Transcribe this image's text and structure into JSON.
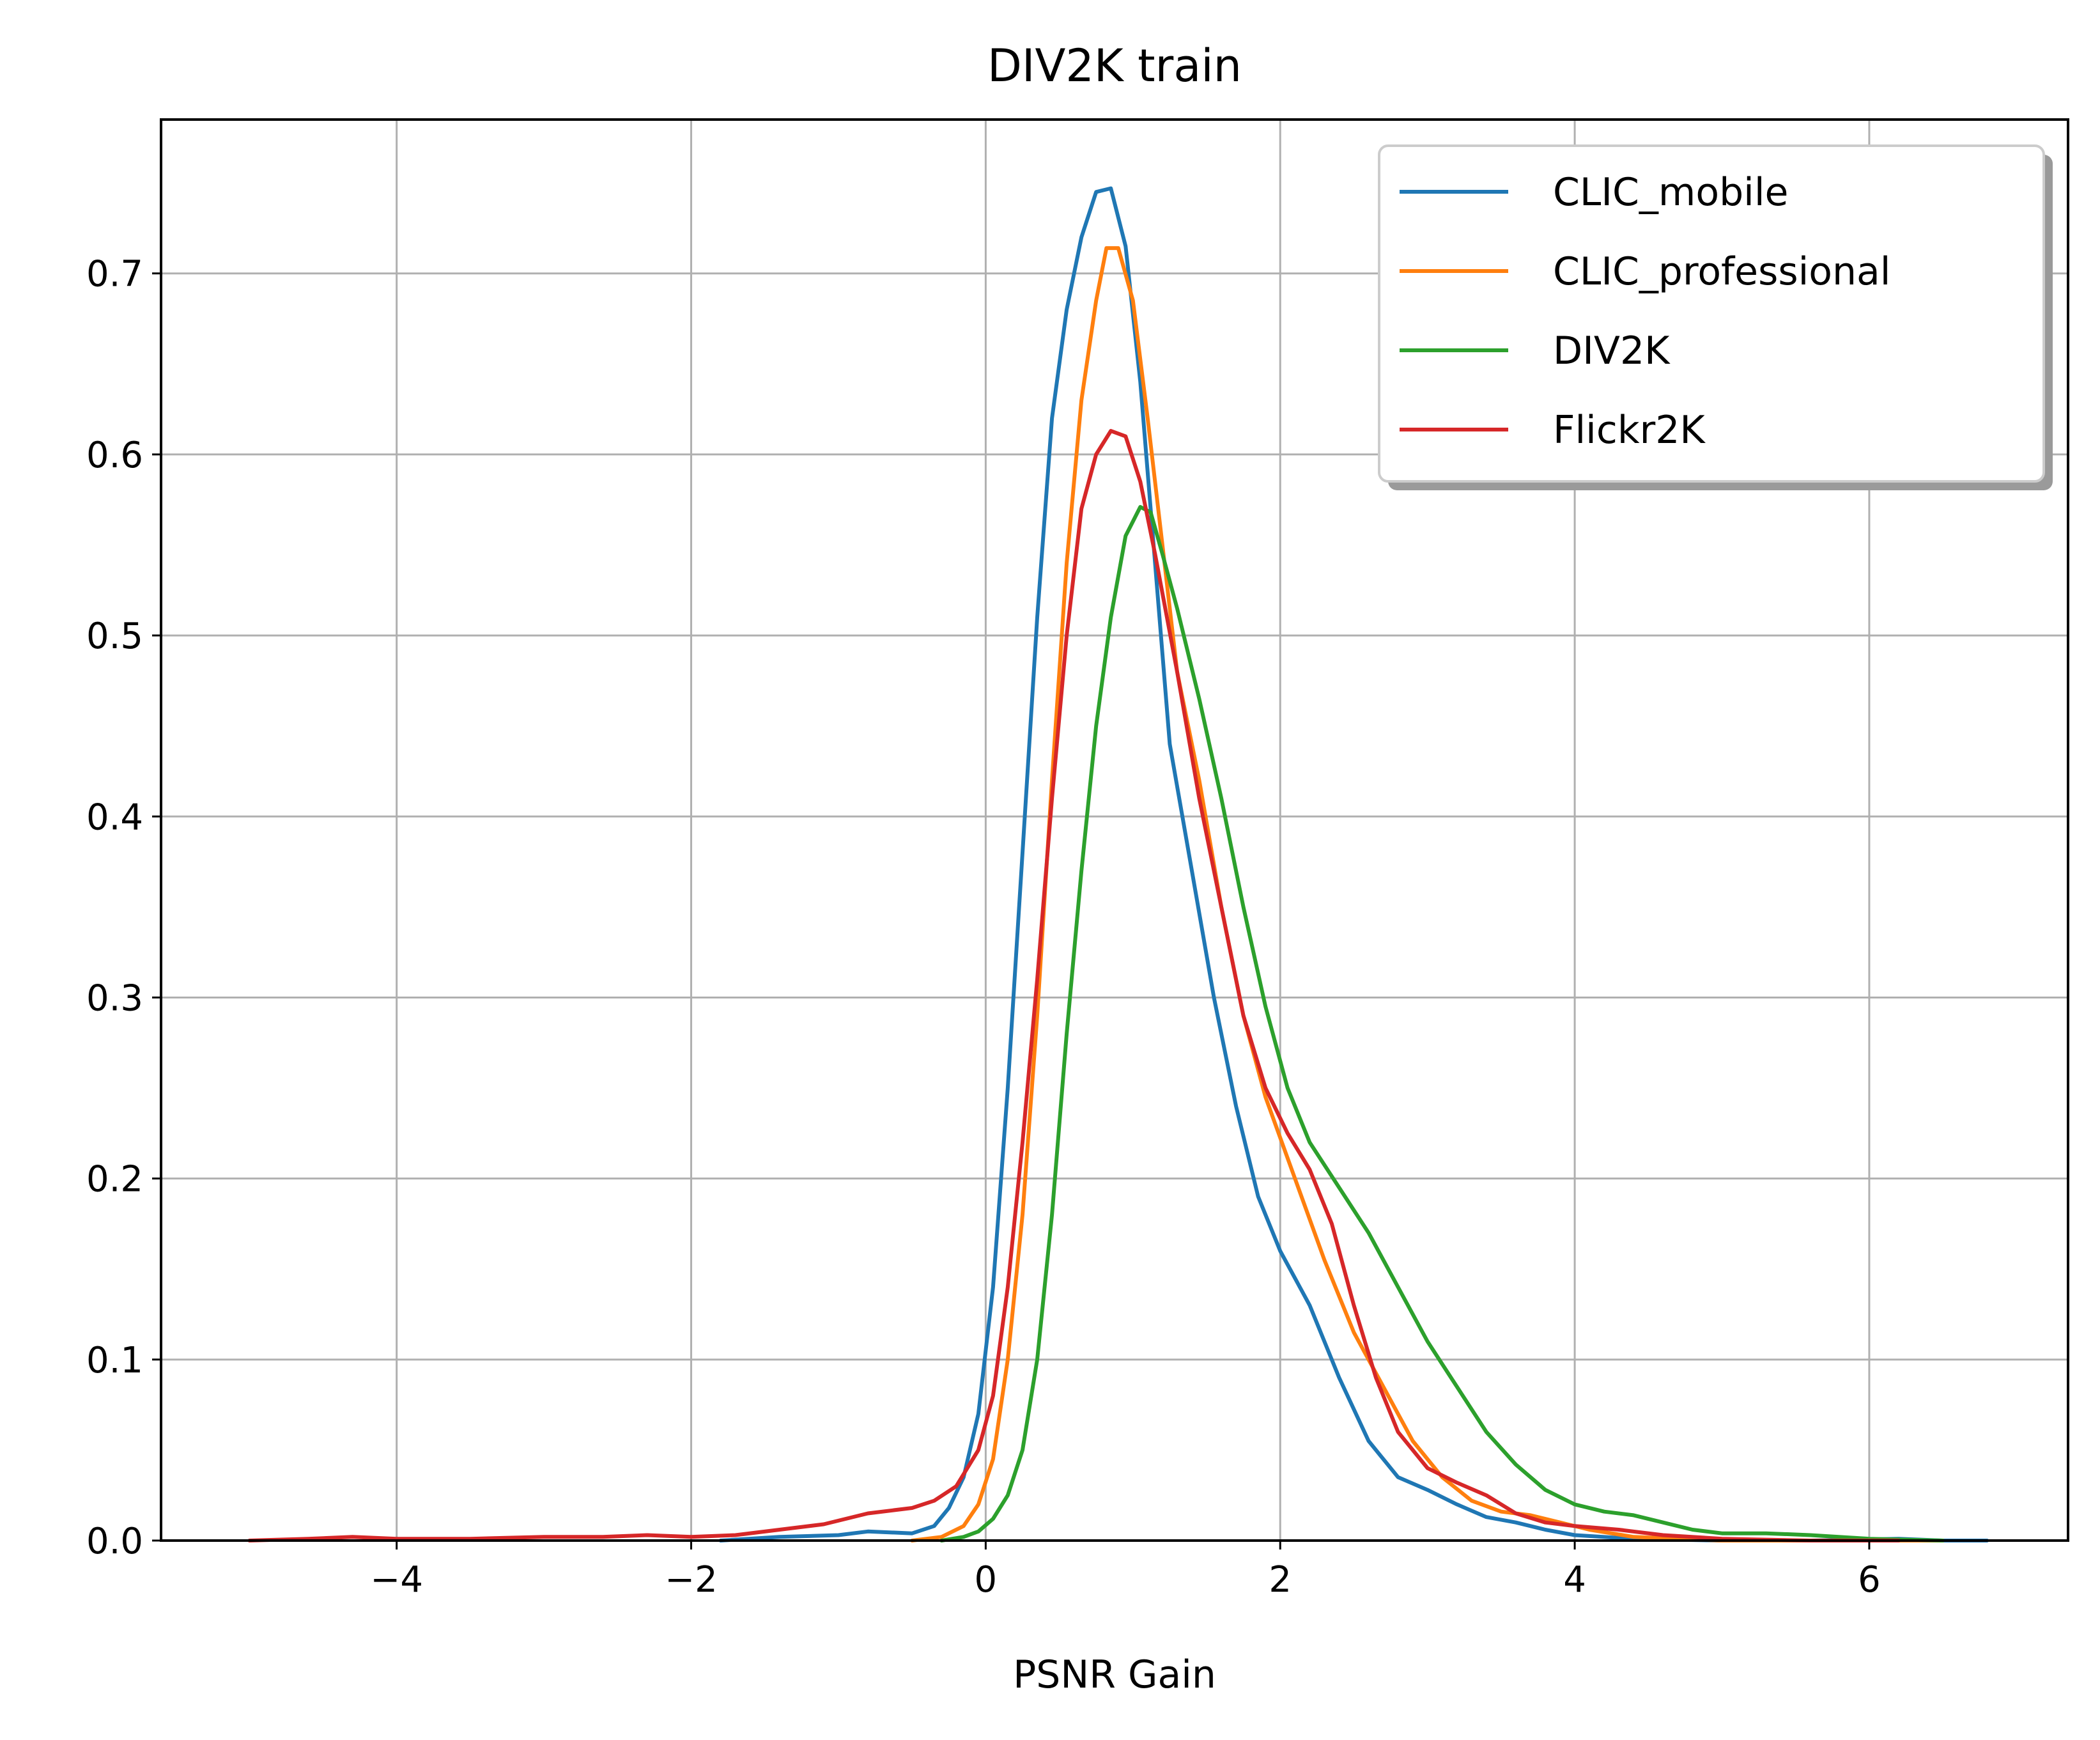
{
  "chart_data": {
    "type": "line",
    "title": "DIV2K train",
    "xlabel": "PSNR Gain",
    "ylabel": "",
    "xlim": [
      -5.6,
      7.35
    ],
    "ylim": [
      0,
      0.785
    ],
    "xticks": [
      -4,
      -2,
      0,
      2,
      4,
      6
    ],
    "xtick_labels": [
      "−4",
      "−2",
      "0",
      "2",
      "4",
      "6"
    ],
    "yticks": [
      0.0,
      0.1,
      0.2,
      0.3,
      0.4,
      0.5,
      0.6,
      0.7
    ],
    "ytick_labels": [
      "0.0",
      "0.1",
      "0.2",
      "0.3",
      "0.4",
      "0.5",
      "0.6",
      "0.7"
    ],
    "grid": true,
    "legend_position": "top-right",
    "series": [
      {
        "name": "CLIC_mobile",
        "color": "#1f77b4",
        "points": [
          [
            -1.8,
            0.0
          ],
          [
            -1.4,
            0.002
          ],
          [
            -1.0,
            0.003
          ],
          [
            -0.8,
            0.005
          ],
          [
            -0.5,
            0.004
          ],
          [
            -0.35,
            0.008
          ],
          [
            -0.25,
            0.018
          ],
          [
            -0.15,
            0.035
          ],
          [
            -0.05,
            0.07
          ],
          [
            0.05,
            0.14
          ],
          [
            0.15,
            0.25
          ],
          [
            0.25,
            0.38
          ],
          [
            0.35,
            0.51
          ],
          [
            0.45,
            0.62
          ],
          [
            0.55,
            0.68
          ],
          [
            0.65,
            0.72
          ],
          [
            0.75,
            0.745
          ],
          [
            0.85,
            0.747
          ],
          [
            0.95,
            0.715
          ],
          [
            1.05,
            0.64
          ],
          [
            1.15,
            0.54
          ],
          [
            1.25,
            0.44
          ],
          [
            1.4,
            0.37
          ],
          [
            1.55,
            0.3
          ],
          [
            1.7,
            0.24
          ],
          [
            1.85,
            0.19
          ],
          [
            2.0,
            0.16
          ],
          [
            2.2,
            0.13
          ],
          [
            2.4,
            0.09
          ],
          [
            2.6,
            0.055
          ],
          [
            2.8,
            0.035
          ],
          [
            3.0,
            0.028
          ],
          [
            3.2,
            0.02
          ],
          [
            3.4,
            0.013
          ],
          [
            3.6,
            0.01
          ],
          [
            3.8,
            0.006
          ],
          [
            4.0,
            0.003
          ],
          [
            4.4,
            0.001
          ],
          [
            5.0,
            0.0
          ],
          [
            5.6,
            0.0
          ],
          [
            6.2,
            0.001
          ],
          [
            6.5,
            0.0
          ],
          [
            6.8,
            0.0
          ]
        ]
      },
      {
        "name": "CLIC_professional",
        "color": "#ff7f0e",
        "points": [
          [
            -0.5,
            0.0
          ],
          [
            -0.3,
            0.002
          ],
          [
            -0.15,
            0.008
          ],
          [
            -0.05,
            0.02
          ],
          [
            0.05,
            0.045
          ],
          [
            0.15,
            0.1
          ],
          [
            0.25,
            0.18
          ],
          [
            0.35,
            0.29
          ],
          [
            0.45,
            0.42
          ],
          [
            0.55,
            0.54
          ],
          [
            0.65,
            0.63
          ],
          [
            0.75,
            0.685
          ],
          [
            0.82,
            0.714
          ],
          [
            0.9,
            0.714
          ],
          [
            1.0,
            0.685
          ],
          [
            1.1,
            0.62
          ],
          [
            1.2,
            0.55
          ],
          [
            1.3,
            0.48
          ],
          [
            1.45,
            0.42
          ],
          [
            1.6,
            0.35
          ],
          [
            1.75,
            0.29
          ],
          [
            1.9,
            0.245
          ],
          [
            2.1,
            0.2
          ],
          [
            2.3,
            0.155
          ],
          [
            2.5,
            0.115
          ],
          [
            2.7,
            0.085
          ],
          [
            2.9,
            0.055
          ],
          [
            3.1,
            0.035
          ],
          [
            3.3,
            0.022
          ],
          [
            3.5,
            0.016
          ],
          [
            3.7,
            0.014
          ],
          [
            3.9,
            0.01
          ],
          [
            4.1,
            0.006
          ],
          [
            4.4,
            0.002
          ],
          [
            5.0,
            0.0
          ],
          [
            6.0,
            0.0
          ],
          [
            6.5,
            0.0
          ]
        ]
      },
      {
        "name": "DIV2K",
        "color": "#2ca02c",
        "points": [
          [
            -0.3,
            0.0
          ],
          [
            -0.15,
            0.002
          ],
          [
            -0.05,
            0.005
          ],
          [
            0.05,
            0.012
          ],
          [
            0.15,
            0.025
          ],
          [
            0.25,
            0.05
          ],
          [
            0.35,
            0.1
          ],
          [
            0.45,
            0.18
          ],
          [
            0.55,
            0.28
          ],
          [
            0.65,
            0.37
          ],
          [
            0.75,
            0.45
          ],
          [
            0.85,
            0.51
          ],
          [
            0.95,
            0.555
          ],
          [
            1.05,
            0.571
          ],
          [
            1.12,
            0.568
          ],
          [
            1.2,
            0.545
          ],
          [
            1.3,
            0.515
          ],
          [
            1.45,
            0.465
          ],
          [
            1.6,
            0.41
          ],
          [
            1.75,
            0.35
          ],
          [
            1.9,
            0.295
          ],
          [
            2.05,
            0.25
          ],
          [
            2.2,
            0.22
          ],
          [
            2.4,
            0.195
          ],
          [
            2.6,
            0.17
          ],
          [
            2.8,
            0.14
          ],
          [
            3.0,
            0.11
          ],
          [
            3.2,
            0.085
          ],
          [
            3.4,
            0.06
          ],
          [
            3.6,
            0.042
          ],
          [
            3.8,
            0.028
          ],
          [
            4.0,
            0.02
          ],
          [
            4.2,
            0.016
          ],
          [
            4.4,
            0.014
          ],
          [
            4.6,
            0.01
          ],
          [
            4.8,
            0.006
          ],
          [
            5.0,
            0.004
          ],
          [
            5.3,
            0.004
          ],
          [
            5.6,
            0.003
          ],
          [
            6.0,
            0.001
          ],
          [
            6.5,
            0.0
          ]
        ]
      },
      {
        "name": "Flickr2K",
        "color": "#d62728",
        "points": [
          [
            -5.0,
            0.0
          ],
          [
            -4.6,
            0.001
          ],
          [
            -4.3,
            0.002
          ],
          [
            -4.0,
            0.001
          ],
          [
            -3.5,
            0.001
          ],
          [
            -3.0,
            0.002
          ],
          [
            -2.6,
            0.002
          ],
          [
            -2.3,
            0.003
          ],
          [
            -2.0,
            0.002
          ],
          [
            -1.7,
            0.003
          ],
          [
            -1.4,
            0.006
          ],
          [
            -1.1,
            0.009
          ],
          [
            -0.8,
            0.015
          ],
          [
            -0.5,
            0.018
          ],
          [
            -0.35,
            0.022
          ],
          [
            -0.2,
            0.03
          ],
          [
            -0.05,
            0.05
          ],
          [
            0.05,
            0.08
          ],
          [
            0.15,
            0.14
          ],
          [
            0.25,
            0.22
          ],
          [
            0.35,
            0.31
          ],
          [
            0.45,
            0.41
          ],
          [
            0.55,
            0.5
          ],
          [
            0.65,
            0.57
          ],
          [
            0.75,
            0.6
          ],
          [
            0.85,
            0.613
          ],
          [
            0.95,
            0.61
          ],
          [
            1.05,
            0.585
          ],
          [
            1.15,
            0.545
          ],
          [
            1.3,
            0.48
          ],
          [
            1.45,
            0.41
          ],
          [
            1.6,
            0.35
          ],
          [
            1.75,
            0.29
          ],
          [
            1.9,
            0.25
          ],
          [
            2.05,
            0.225
          ],
          [
            2.2,
            0.205
          ],
          [
            2.35,
            0.175
          ],
          [
            2.5,
            0.13
          ],
          [
            2.65,
            0.09
          ],
          [
            2.8,
            0.06
          ],
          [
            3.0,
            0.04
          ],
          [
            3.2,
            0.032
          ],
          [
            3.4,
            0.025
          ],
          [
            3.6,
            0.015
          ],
          [
            3.8,
            0.01
          ],
          [
            4.0,
            0.008
          ],
          [
            4.3,
            0.006
          ],
          [
            4.6,
            0.003
          ],
          [
            5.0,
            0.001
          ],
          [
            5.6,
            0.0
          ],
          [
            6.2,
            0.0
          ]
        ]
      }
    ]
  }
}
